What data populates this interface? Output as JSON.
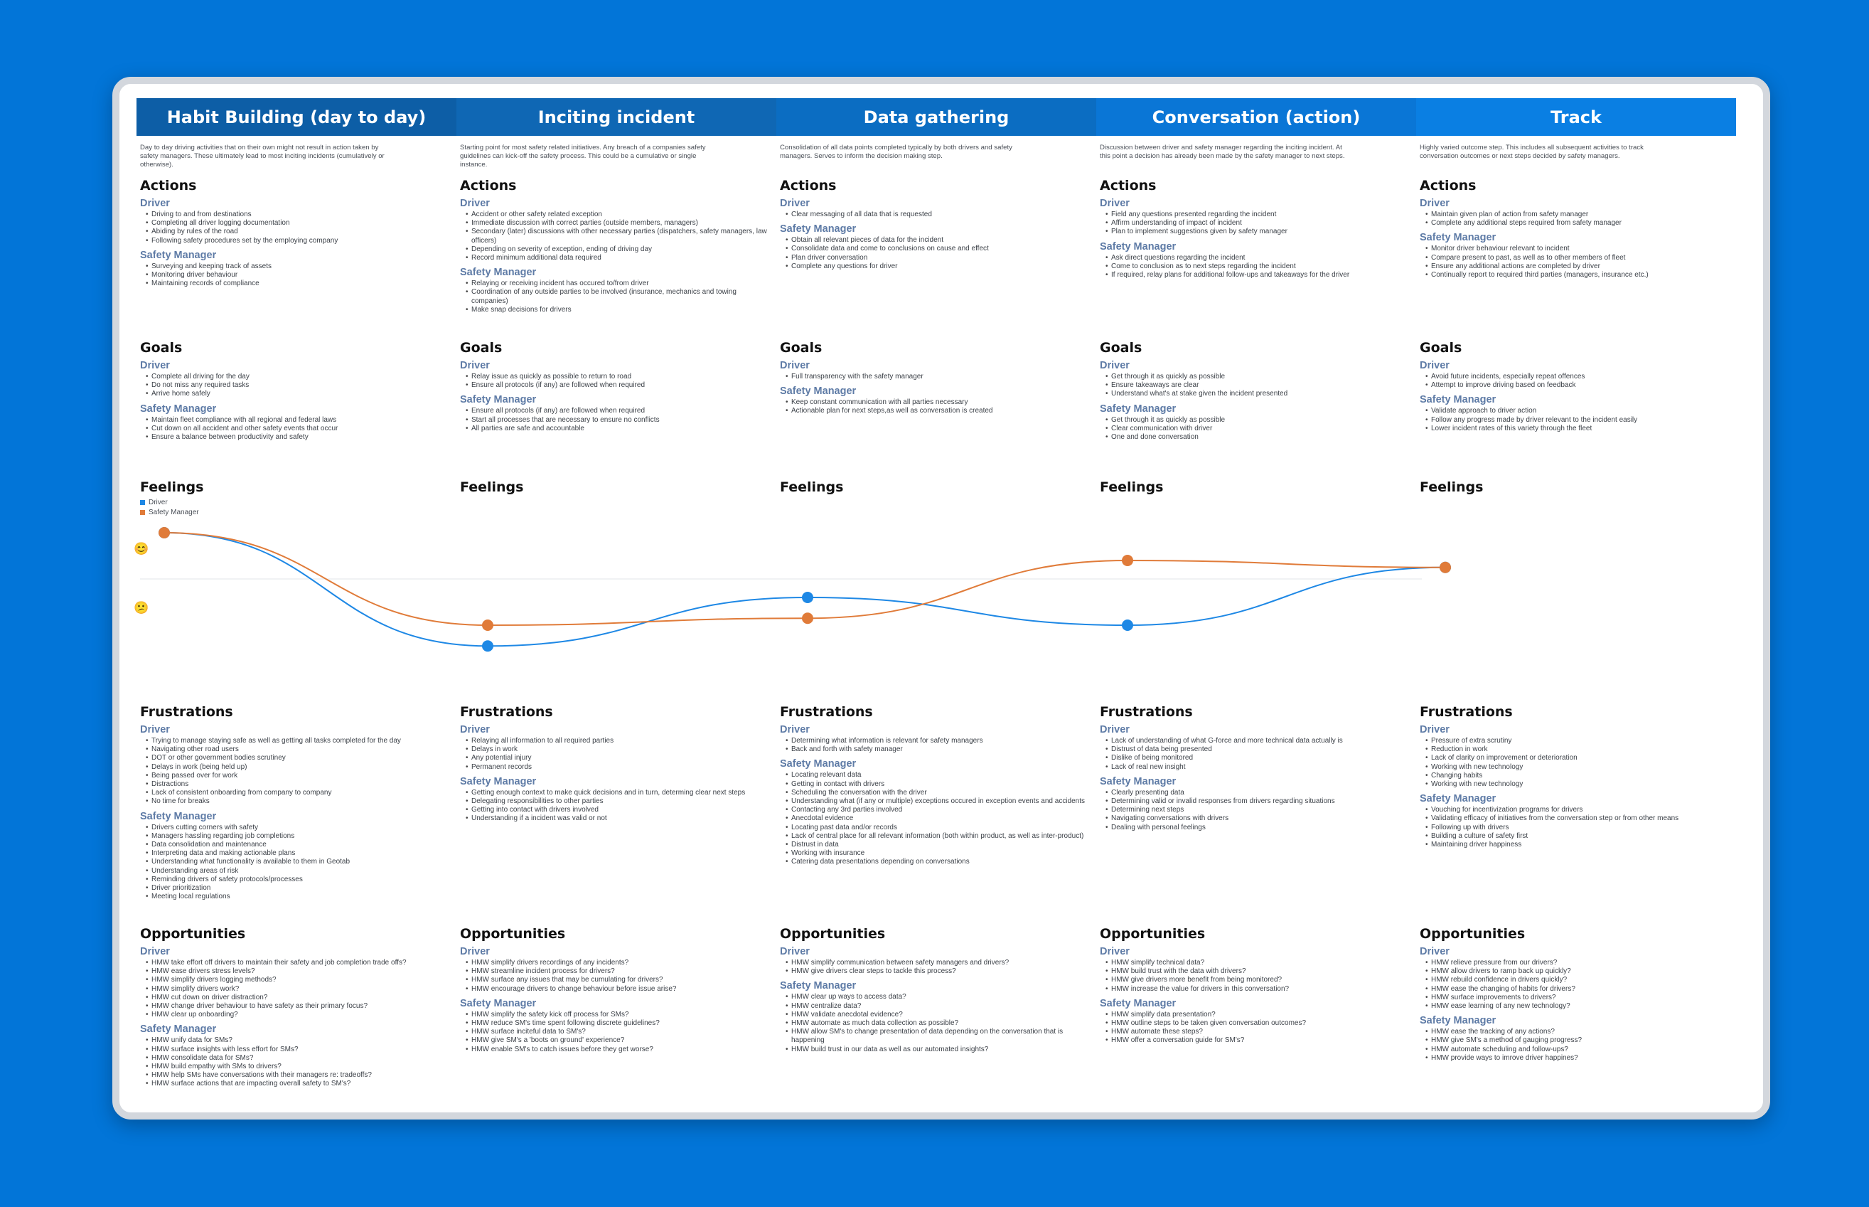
{
  "columns": [
    {
      "title": "Habit Building (day to day)",
      "header_color": "#0d5ea6",
      "description": "Day to day driving activities that on their own might not result in action taken by safety managers. These ultimately lead to most inciting incidents (cumulatively or otherwise).",
      "actions": {
        "driver": [
          "Driving to and from destinations",
          "Completing all driver logging documentation",
          "Abiding by rules of the road",
          "Following safety procedures set by the employing company"
        ],
        "safety_manager": [
          "Surveying and keeping track of assets",
          "Monitoring driver behaviour",
          "Maintaining records of compliance"
        ]
      },
      "goals": {
        "driver": [
          "Complete all driving for the day",
          "Do not miss any required tasks",
          "Arrive home safely"
        ],
        "safety_manager": [
          "Maintain fleet compliance with all regional and federal laws",
          "Cut down on all accident and other safety events that occur",
          "Ensure a balance between productivity and safety"
        ]
      },
      "frustrations": {
        "driver": [
          "Trying to manage staying safe as well as getting all tasks completed for the day",
          "Navigating other road users",
          "DOT or other government bodies scrutiney",
          "Delays in work (being held up)",
          "Being passed over for work",
          "Distractions",
          "Lack of consistent onboarding from company to company",
          "No time for breaks"
        ],
        "safety_manager": [
          "Drivers cutting corners with safety",
          "Managers hassling regarding job completions",
          "Data consolidation and maintenance",
          "Interpreting data and making actionable plans",
          "Understanding what functionality is available to them in Geotab",
          "Understanding areas of risk",
          "Reminding drivers of safety protocols/processes",
          "Driver prioritization",
          "Meeting local regulations"
        ]
      },
      "opportunities": {
        "driver": [
          "HMW take effort off drivers to maintain their safety and job completion trade offs?",
          "HMW ease drivers stress levels?",
          "HMW simplify drivers logging methods?",
          "HMW simplify drivers work?",
          "HMW cut down on driver distraction?",
          "HMW change driver behaviour to have safety as their primary focus?",
          "HMW clear up onboarding?"
        ],
        "safety_manager": [
          "HMW unify data for SMs?",
          "HMW surface insights with less effort for SMs?",
          "HMW consolidate data for SMs?",
          "HMW build empathy with SMs to drivers?",
          "HMW help SMs have conversations with their managers re: tradeoffs?",
          "HMW surface actions that are impacting overall safety to SM's?"
        ]
      }
    },
    {
      "title": "Inciting incident",
      "header_color": "#0f67b4",
      "description": "Starting point for most safety related initiatives. Any breach of a companies safety guidelines can kick-off the safety process. This could be a cumulative or single instance.",
      "actions": {
        "driver": [
          "Accident or other safety related exception",
          "Immediate discussion with correct parties (outside members, managers)",
          "Secondary (later) discussions with other necessary parties (dispatchers, safety managers, law officers)",
          "Depending on severity of exception, ending of driving day",
          "Record minimum additional data required"
        ],
        "safety_manager": [
          "Relaying or receiving incident has occured to/from driver",
          "Coordination of any outside parties to be involved (insurance, mechanics and towing companies)",
          "Make snap decisions for drivers"
        ]
      },
      "goals": {
        "driver": [
          "Relay issue as quickly as possible to return to road",
          "Ensure all protocols (if any) are followed when required"
        ],
        "safety_manager": [
          "Ensure all protocols (if any) are followed when required",
          "Start all processes that are necessary to ensure no conflicts",
          "All parties are safe and accountable"
        ]
      },
      "frustrations": {
        "driver": [
          "Relaying all information to all required parties",
          "Delays in work",
          "Any potential injury",
          "Permanent records"
        ],
        "safety_manager": [
          "Getting enough context to make quick decisions and in turn, determing clear next steps",
          "Delegating responsibilities to other parties",
          "Getting into contact with drivers involved",
          "Understanding if a incident was valid or not"
        ]
      },
      "opportunities": {
        "driver": [
          "HMW simplify drivers recordings of any incidents?",
          "HMW streamline incident process for drivers?",
          "HMW surface any issues that may be cumulating for drivers?",
          "HMW encourage drivers to change behaviour before issue arise?"
        ],
        "safety_manager": [
          "HMW simplify the safety kick off process for SMs?",
          "HMW reduce SM's time spent following discrete guidelines?",
          "HMW surface inciteful data to SM's?",
          "HMW give SM's a 'boots on ground' experience?",
          "HMW enable SM's to catch issues before they get worse?"
        ]
      }
    },
    {
      "title": "Data gathering",
      "header_color": "#0b6dc2",
      "description": "Consolidation of all data points completed typically by both drivers and safety managers. Serves to inform the decision making step.",
      "actions": {
        "driver": [
          "Clear messaging of all data that is requested"
        ],
        "safety_manager": [
          "Obtain all relevant pieces of data for the incident",
          "Consolidate data and come to conclusions on cause and effect",
          "Plan driver conversation",
          "Complete any questions for driver"
        ]
      },
      "goals": {
        "driver": [
          "Full transparency with the safety manager"
        ],
        "safety_manager": [
          "Keep constant communication with all parties necessary",
          "Actionable plan for next steps,as well as conversation is created"
        ]
      },
      "frustrations": {
        "driver": [
          "Determining what information is relevant for safety managers",
          "Back and forth with safety manager"
        ],
        "safety_manager": [
          "Locating relevant data",
          "Getting in contact with drivers",
          "Scheduling the conversation with the driver",
          "Understanding what (if any or multiple) exceptions occured in exception events and accidents",
          "Contacting any 3rd parties involved",
          "Anecdotal evidence",
          "Locating past data and/or records",
          "Lack of central place for all relevant information (both within product, as well as inter-product)",
          "Distrust in data",
          "Working with insurance",
          "Catering data presentations depending on conversations"
        ]
      },
      "opportunities": {
        "driver": [
          "HMW simplify communication between safety managers and drivers?",
          "HMW give drivers clear steps to tackle this process?"
        ],
        "safety_manager": [
          "HMW clear up ways to access data?",
          "HMW centralize data?",
          "HMW validate anecdotal evidence?",
          "HMW automate as much data collection as possible?",
          "HMW allow SM's to change presentation of data depending on the conversation that is happening",
          "HMW build trust in our data as well as our automated insights?"
        ]
      }
    },
    {
      "title": "Conversation (action)",
      "header_color": "#0a76d6",
      "description": "Discussion between driver and safety manager regarding the inciting incident. At this point a decision has already been made by the safety manager to next steps.",
      "actions": {
        "driver": [
          "Field any questions presented regarding the incident",
          "Affirm understanding of impact of incident",
          "Plan to implement suggestions given by safety manager"
        ],
        "safety_manager": [
          "Ask direct questions regarding the incident",
          "Come to conclusion as to next steps regarding the incident",
          "If required, relay plans for additional follow-ups and takeaways for the driver"
        ]
      },
      "goals": {
        "driver": [
          "Get through it as quickly as possible",
          "Ensure takeaways are clear",
          "Understand what's at stake given the incident presented"
        ],
        "safety_manager": [
          "Get through it as quickly as possible",
          "Clear communication with driver",
          "One and done conversation"
        ]
      },
      "frustrations": {
        "driver": [
          "Lack of understanding of what G-force and more technical data actually is",
          "Distrust of data being presented",
          "Dislike of being monitored",
          "Lack of real new insight"
        ],
        "safety_manager": [
          "Clearly presenting data",
          "Determining valid or invalid responses from drivers regarding situations",
          "Determining next steps",
          "Navigating conversations with drivers",
          "Dealing with personal feelings"
        ]
      },
      "opportunities": {
        "driver": [
          "HMW simplify technical data?",
          "HMW build trust with the data with drivers?",
          "HMW give drivers more benefit from being monitored?",
          "HMW increase the value for drivers in this conversation?"
        ],
        "safety_manager": [
          "HMW simplify data presentation?",
          "HMW outline steps to be taken given conversation outcomes?",
          "HMW automate these steps?",
          "HMW offer a conversation guide for SM's?"
        ]
      }
    },
    {
      "title": "Track",
      "header_color": "#0a7fe3",
      "description": "Highly varied outcome step. This includes all subsequent activities to track conversation outcomes or next steps decided by safety managers.",
      "actions": {
        "driver": [
          "Maintain given plan of action from safety manager",
          "Complete any additional steps required from safety manager"
        ],
        "safety_manager": [
          "Monitor driver behaviour relevant to incident",
          "Compare present to past, as well as to other members of fleet",
          "Ensure any additional actions are completed by driver",
          "Continually report to required third parties (managers, insurance etc.)"
        ]
      },
      "goals": {
        "driver": [
          "Avoid future incidents, especially repeat offences",
          "Attempt to improve driving based on feedback"
        ],
        "safety_manager": [
          "Validate approach to driver action",
          "Follow any progress made by driver relevant to the incident easily",
          "Lower incident rates of this variety through the fleet"
        ]
      },
      "frustrations": {
        "driver": [
          "Pressure of extra scrutiny",
          "Reduction in work",
          "Lack of clarity on improvement or deterioration",
          "Working with new technology",
          "Changing habits",
          "Working with new technology"
        ],
        "safety_manager": [
          "Vouching for incentivization programs for drivers",
          "Validating efficacy of initiatives from the conversation step or from other means",
          "Following up with drivers",
          "Building a culture of safety first",
          "Maintaining driver happiness"
        ]
      },
      "opportunities": {
        "driver": [
          "HMW relieve pressure from our drivers?",
          "HMW allow drivers to ramp back up quickly?",
          "HMW rebuild confidence in drivers quickly?",
          "HMW ease the changing of habits for drivers?",
          "HMW surface improvements to drivers?",
          "HMW ease learning of any new technology?"
        ],
        "safety_manager": [
          "HMW ease the tracking of any actions?",
          "HMW give SM's a method of gauging progress?",
          "HMW automate scheduling and follow-ups?",
          "HMW provide ways to imrove driver happines?"
        ]
      }
    }
  ],
  "labels": {
    "actions": "Actions",
    "goals": "Goals",
    "feelings": "Feelings",
    "frustrations": "Frustrations",
    "opportunities": "Opportunities",
    "driver": "Driver",
    "safety_manager": "Safety Manager"
  },
  "legend": {
    "driver": "Driver",
    "safety_manager": "Safety Manager"
  },
  "colors": {
    "background": "#0275d8",
    "driver": "#1e88e5",
    "safety_manager": "#e07b39",
    "role_label": "#5e7ba6"
  },
  "icons": {
    "happy": "😊",
    "sad": "😕"
  },
  "chart_data": {
    "type": "line",
    "categories": [
      "Habit Building (day to day)",
      "Inciting incident",
      "Data gathering",
      "Conversation (action)",
      "Track"
    ],
    "ylim": [
      -1,
      1
    ],
    "series": [
      {
        "name": "Driver",
        "values": [
          1.0,
          -1.45,
          -0.4,
          -1.0,
          0.25
        ]
      },
      {
        "name": "Safety Manager",
        "values": [
          1.0,
          -1.0,
          -0.85,
          0.4,
          0.25
        ]
      }
    ]
  }
}
